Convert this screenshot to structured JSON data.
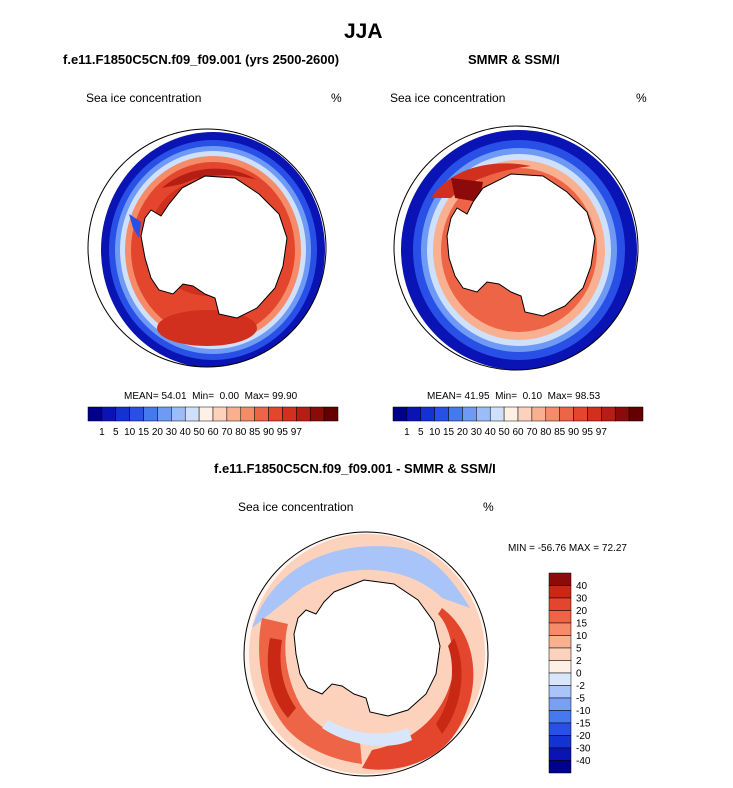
{
  "figure": {
    "title": "JJA",
    "colors": {
      "scale": [
        "#00008c",
        "#0a14b4",
        "#1432d2",
        "#2850e6",
        "#4678f0",
        "#6e9af5",
        "#9cbcf8",
        "#cfe0fb",
        "#fff0e6",
        "#fcd2bc",
        "#f9b091",
        "#f58b68",
        "#ee6446",
        "#e4462d",
        "#d2301e",
        "#b41e14",
        "#8c0a0a",
        "#640000"
      ],
      "diff_scale": [
        "#00008c",
        "#0a14b4",
        "#1432d2",
        "#2850e6",
        "#4678f0",
        "#7aa0f5",
        "#a8c4f8",
        "#d8e6fb",
        "#fff0e6",
        "#fcd2bc",
        "#f9b091",
        "#f58b68",
        "#ee6446",
        "#e4462d",
        "#c82814",
        "#8c0a0a"
      ]
    }
  },
  "panels": {
    "model": {
      "heading": "f.e11.F1850C5CN.f09_f09.001 (yrs 2500-2600)",
      "variable_label": "Sea ice concentration",
      "units_label": "%",
      "stats": {
        "mean_label": "MEAN=",
        "mean": "54.01",
        "min_label": "Min=",
        "min": "0.00",
        "max_label": "Max=",
        "max": "99.90"
      }
    },
    "obs": {
      "heading": "SMMR & SSM/I",
      "variable_label": "Sea ice concentration",
      "units_label": "%",
      "stats": {
        "mean_label": "MEAN=",
        "mean": "41.95",
        "min_label": "Min=",
        "min": "0.10",
        "max_label": "Max=",
        "max": "98.53"
      }
    },
    "diff": {
      "heading": "f.e11.F1850C5CN.f09_f09.001 - SMMR & SSM/I",
      "variable_label": "Sea ice concentration",
      "units_label": "%",
      "stats_text": "MIN = -56.76 MAX =  72.27"
    }
  },
  "colorbar_levels": [
    "1",
    "5",
    "10",
    "15",
    "20",
    "30",
    "40",
    "50",
    "60",
    "70",
    "80",
    "85",
    "90",
    "95",
    "97"
  ],
  "diff_colorbar_levels": [
    "40",
    "30",
    "20",
    "15",
    "10",
    "5",
    "2",
    "0",
    "-2",
    "-5",
    "-10",
    "-15",
    "-20",
    "-30",
    "-40"
  ]
}
